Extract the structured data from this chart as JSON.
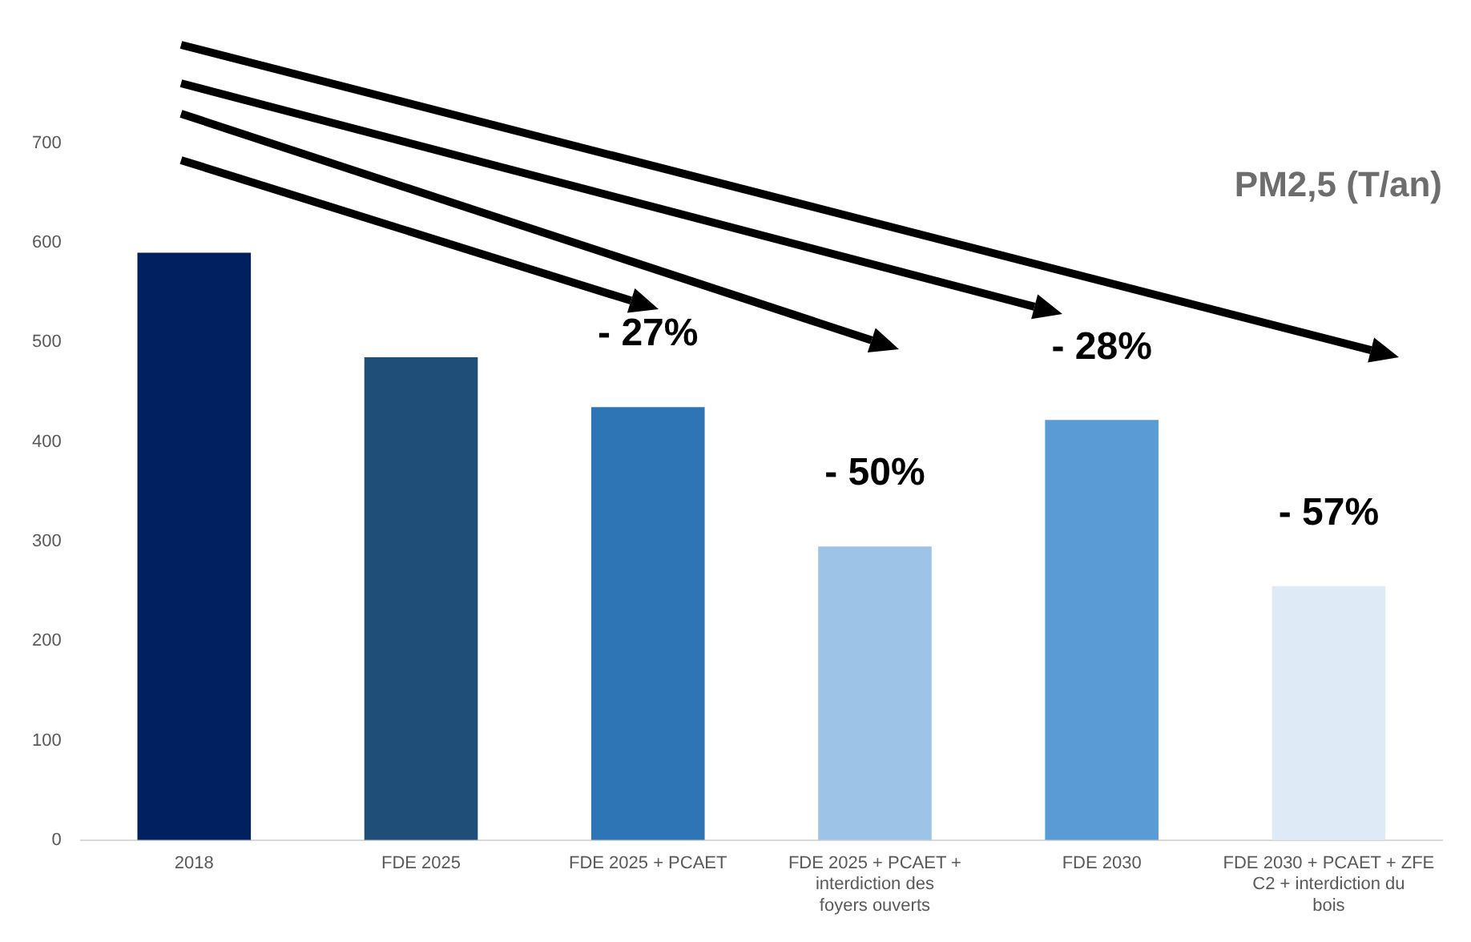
{
  "chart_data": {
    "type": "bar",
    "title": "PM2,5 (T/an)",
    "categories": [
      "2018",
      "FDE 2025",
      "FDE 2025 + PCAET",
      "FDE 2025 + PCAET + interdiction des foyers ouverts",
      "FDE 2030",
      "FDE 2030 + PCAET + ZFE C2 + interdiction du bois"
    ],
    "values": [
      590,
      485,
      435,
      295,
      422,
      255
    ],
    "colors": [
      "#002060",
      "#1f4e79",
      "#2e75b6",
      "#9dc3e6",
      "#5b9bd5",
      "#deebf7"
    ],
    "ylim": [
      0,
      700
    ],
    "yticks": [
      0,
      100,
      200,
      300,
      400,
      500,
      600,
      700
    ],
    "grid": false,
    "legend": false,
    "annotations": [
      "- 27%",
      "- 50%",
      "- 28%",
      "- 57%"
    ]
  }
}
